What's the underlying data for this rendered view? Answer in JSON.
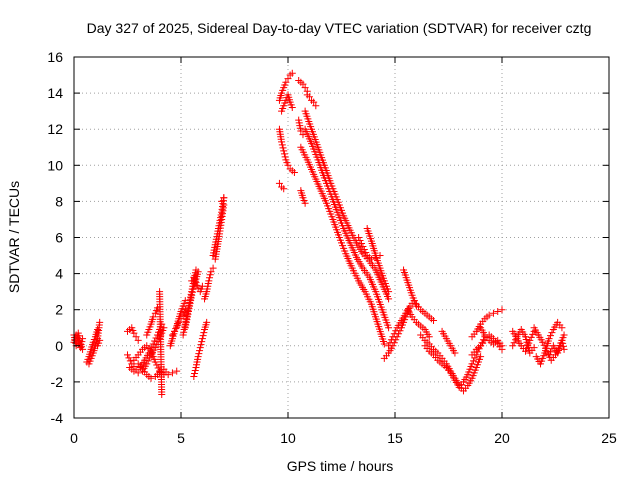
{
  "chart_data": {
    "type": "scatter",
    "title": "Day 327 of 2025, Sidereal Day-to-day VTEC variation (SDTVAR) for receiver cztg",
    "xlabel": "GPS time / hours",
    "ylabel": "SDTVAR / TECUs",
    "xlim": [
      0,
      25
    ],
    "ylim": [
      -4,
      16
    ],
    "xticks": [
      0,
      5,
      10,
      15,
      20,
      25
    ],
    "xtick_labels": [
      "0",
      "5",
      "10",
      "15",
      "20",
      "25"
    ],
    "yticks": [
      -4,
      -2,
      0,
      2,
      4,
      6,
      8,
      10,
      12,
      14,
      16
    ],
    "ytick_labels": [
      "-4",
      "-2",
      "0",
      "2",
      "4",
      "6",
      "8",
      "10",
      "12",
      "14",
      "16"
    ],
    "grid": true,
    "marker": "plus",
    "color": "#ff0000",
    "series": [
      {
        "name": "t0",
        "x": [
          0.0,
          0.1,
          0.2,
          0.3,
          0.4
        ],
        "y": [
          0.2,
          0.6,
          0.3,
          -0.1,
          0.4
        ]
      },
      {
        "name": "t1",
        "x": [
          0.0,
          0.1,
          0.2,
          0.3,
          0.4
        ],
        "y": [
          0.6,
          0.0,
          0.7,
          0.1,
          -0.2
        ]
      },
      {
        "name": "t2",
        "x": [
          0.6,
          0.7,
          0.8,
          0.9,
          1.0,
          1.1
        ],
        "y": [
          -0.9,
          -0.6,
          -0.2,
          0.2,
          0.5,
          0.9
        ]
      },
      {
        "name": "t3",
        "x": [
          0.7,
          0.8,
          0.9,
          1.0,
          1.1,
          1.2
        ],
        "y": [
          -1.0,
          -0.7,
          -0.4,
          0.0,
          0.4,
          1.3
        ]
      },
      {
        "name": "t4",
        "x": [
          1.1,
          1.2
        ],
        "y": [
          0.0,
          0.3
        ]
      },
      {
        "name": "t5",
        "x": [
          2.5,
          2.6,
          2.7,
          2.8,
          2.9,
          3.0
        ],
        "y": [
          0.8,
          0.9,
          1.0,
          0.7,
          0.5,
          0.3
        ]
      },
      {
        "name": "t6",
        "x": [
          2.5,
          2.7,
          2.9,
          3.1,
          3.3,
          3.5,
          3.7,
          3.9,
          4.1
        ],
        "y": [
          -0.5,
          -1.0,
          -1.3,
          -1.2,
          -0.8,
          -0.4,
          0.1,
          0.6,
          1.2
        ]
      },
      {
        "name": "t7",
        "x": [
          2.6,
          2.8,
          3.0,
          3.2,
          3.4,
          3.6,
          3.8,
          4.0,
          4.2
        ],
        "y": [
          -1.2,
          -1.4,
          -1.5,
          -1.4,
          -1.0,
          -0.5,
          -0.1,
          0.4,
          1.0
        ]
      },
      {
        "name": "t8",
        "x": [
          2.8,
          3.0,
          3.2,
          3.4,
          3.6,
          3.8,
          4.0,
          4.2
        ],
        "y": [
          -0.8,
          -0.5,
          -0.2,
          0.0,
          -0.3,
          -0.9,
          -1.4,
          -1.6
        ]
      },
      {
        "name": "t9",
        "x": [
          3.0,
          3.2,
          3.4,
          3.6,
          3.8,
          4.0
        ],
        "y": [
          -1.0,
          -1.3,
          -1.6,
          -1.8,
          -1.7,
          -1.5
        ]
      },
      {
        "name": "t10",
        "x": [
          3.4,
          3.5,
          3.6,
          3.7,
          3.8,
          3.9
        ],
        "y": [
          0.6,
          0.9,
          1.2,
          1.6,
          1.8,
          2.1
        ]
      },
      {
        "name": "t11",
        "x": [
          4.0,
          4.2,
          4.4,
          4.6,
          4.8
        ],
        "y": [
          -1.4,
          -1.3,
          -1.6,
          -1.5,
          -1.4
        ]
      },
      {
        "name": "t12",
        "x": [
          4.0,
          4.1
        ],
        "y": [
          3.0,
          -2.7
        ]
      },
      {
        "name": "t13",
        "x": [
          4.5,
          4.6,
          4.7,
          4.8,
          4.9,
          5.0,
          5.1,
          5.2
        ],
        "y": [
          0.0,
          0.4,
          0.8,
          1.1,
          1.5,
          1.9,
          2.2,
          2.5
        ]
      },
      {
        "name": "t14",
        "x": [
          4.6,
          4.7,
          4.8,
          4.9,
          5.0,
          5.1,
          5.2
        ],
        "y": [
          0.6,
          0.8,
          1.0,
          1.3,
          1.5,
          1.7,
          2.0
        ]
      },
      {
        "name": "t15",
        "x": [
          5.1,
          5.2,
          5.3,
          5.4,
          5.5,
          5.6,
          5.7
        ],
        "y": [
          0.6,
          1.2,
          1.8,
          2.4,
          3.0,
          3.6,
          4.2
        ]
      },
      {
        "name": "t16",
        "x": [
          5.2,
          5.3,
          5.4,
          5.5,
          5.6,
          5.7,
          5.8
        ],
        "y": [
          1.0,
          1.6,
          2.2,
          2.8,
          3.3,
          3.7,
          4.1
        ]
      },
      {
        "name": "t17",
        "x": [
          5.5,
          5.6,
          5.7,
          5.8,
          5.9,
          6.0
        ],
        "y": [
          3.6,
          3.8,
          3.5,
          3.2,
          3.0,
          3.3
        ]
      },
      {
        "name": "t18",
        "x": [
          5.6,
          5.7,
          5.8,
          5.9,
          6.0,
          6.1,
          6.2
        ],
        "y": [
          -1.7,
          -1.2,
          -0.6,
          -0.1,
          0.4,
          0.9,
          1.3
        ]
      },
      {
        "name": "t19",
        "x": [
          6.1,
          6.2,
          6.3,
          6.4,
          6.5
        ],
        "y": [
          2.6,
          3.0,
          3.6,
          4.1,
          4.3
        ]
      },
      {
        "name": "t20",
        "x": [
          6.5,
          6.6,
          6.7,
          6.8,
          6.9,
          7.0
        ],
        "y": [
          5.0,
          5.6,
          6.2,
          6.8,
          7.4,
          8.2
        ]
      },
      {
        "name": "t21",
        "x": [
          6.6,
          6.7,
          6.8,
          6.9,
          7.0
        ],
        "y": [
          4.8,
          5.5,
          6.2,
          7.0,
          7.8
        ]
      },
      {
        "name": "t22",
        "x": [
          6.9,
          7.0
        ],
        "y": [
          8.0,
          8.2
        ]
      },
      {
        "name": "t23",
        "x": [
          9.6,
          9.7,
          9.8,
          9.9,
          10.0,
          10.1,
          10.2
        ],
        "y": [
          13.6,
          14.0,
          14.3,
          14.6,
          14.8,
          15.0,
          15.1
        ]
      },
      {
        "name": "t24",
        "x": [
          9.7,
          9.8,
          9.9,
          10.0,
          10.1,
          10.2
        ],
        "y": [
          13.0,
          13.3,
          13.6,
          13.9,
          13.5,
          13.2
        ]
      },
      {
        "name": "t25",
        "x": [
          9.6,
          9.7,
          9.8,
          9.9,
          10.0,
          10.1,
          10.2,
          10.3
        ],
        "y": [
          12.0,
          11.3,
          10.8,
          10.3,
          10.0,
          9.8,
          9.7,
          9.6
        ]
      },
      {
        "name": "t26",
        "x": [
          9.6,
          9.7,
          9.8
        ],
        "y": [
          9.0,
          8.8,
          8.7
        ]
      },
      {
        "name": "t27",
        "x": [
          10.5,
          10.6,
          10.7,
          10.8,
          10.9
        ],
        "y": [
          14.7,
          14.6,
          14.5,
          14.3,
          14.1
        ]
      },
      {
        "name": "t28",
        "x": [
          10.9,
          11.0,
          11.1,
          11.2,
          11.3
        ],
        "y": [
          13.9,
          13.8,
          13.6,
          13.5,
          13.3
        ]
      },
      {
        "name": "t29",
        "x": [
          10.5,
          10.6,
          10.7
        ],
        "y": [
          12.5,
          11.9,
          11.7
        ]
      },
      {
        "name": "t30",
        "x": [
          10.6,
          10.7,
          10.8
        ],
        "y": [
          8.6,
          8.2,
          7.9
        ]
      },
      {
        "name": "t31",
        "x": [
          10.8,
          11.1,
          11.4,
          11.7,
          12.0,
          12.3,
          12.6,
          12.9,
          13.2,
          13.5,
          13.8,
          14.1,
          14.4,
          14.7
        ],
        "y": [
          13.0,
          12.0,
          11.0,
          10.0,
          9.0,
          8.1,
          7.2,
          6.4,
          5.7,
          5.1,
          4.7,
          4.2,
          3.4,
          2.6
        ]
      },
      {
        "name": "t32",
        "x": [
          10.8,
          11.1,
          11.4,
          11.7,
          12.0,
          12.3,
          12.6,
          12.9,
          13.2,
          13.5,
          13.8,
          14.1,
          14.4,
          14.7
        ],
        "y": [
          12.0,
          11.2,
          10.3,
          9.3,
          8.4,
          7.4,
          6.5,
          5.7,
          4.9,
          4.3,
          3.8,
          3.0,
          2.0,
          1.0
        ]
      },
      {
        "name": "t33",
        "x": [
          10.6,
          10.9,
          11.2,
          11.5,
          11.8,
          12.1,
          12.4,
          12.7,
          13.0,
          13.3,
          13.6,
          13.9,
          14.2,
          14.5
        ],
        "y": [
          11.0,
          10.3,
          9.5,
          8.7,
          7.9,
          7.0,
          6.0,
          5.1,
          4.3,
          3.6,
          3.0,
          2.3,
          1.2,
          0.1
        ]
      },
      {
        "name": "t34",
        "x": [
          13.3,
          13.5,
          13.7,
          13.9,
          14.1,
          14.3
        ],
        "y": [
          6.0,
          5.5,
          5.0,
          4.8,
          4.9,
          5.0
        ]
      },
      {
        "name": "t35",
        "x": [
          13.7,
          13.9,
          14.1,
          14.3,
          14.5,
          14.7
        ],
        "y": [
          6.5,
          5.8,
          5.0,
          4.3,
          3.6,
          3.0
        ]
      },
      {
        "name": "t36",
        "x": [
          14.5,
          14.7,
          14.9,
          15.1,
          15.3,
          15.5,
          15.7
        ],
        "y": [
          -0.7,
          -0.4,
          0.0,
          0.5,
          1.0,
          1.6,
          2.1
        ]
      },
      {
        "name": "t37",
        "x": [
          14.7,
          14.9,
          15.1,
          15.3,
          15.5,
          15.7,
          15.9
        ],
        "y": [
          0.0,
          0.5,
          1.0,
          1.4,
          1.8,
          2.2,
          2.5
        ]
      },
      {
        "name": "t38",
        "x": [
          15.4,
          15.6,
          15.8,
          16.0
        ],
        "y": [
          4.2,
          3.5,
          2.8,
          2.2
        ]
      },
      {
        "name": "t39",
        "x": [
          15.6,
          15.8,
          16.0,
          16.2,
          16.4,
          16.6
        ],
        "y": [
          2.0,
          1.6,
          1.3,
          1.1,
          0.9,
          0.5
        ]
      },
      {
        "name": "t40",
        "x": [
          16.0,
          16.2,
          16.4,
          16.6,
          16.8
        ],
        "y": [
          2.3,
          2.0,
          1.8,
          1.6,
          1.4
        ]
      },
      {
        "name": "t41",
        "x": [
          16.2,
          16.4,
          16.6,
          16.8,
          17.0,
          17.2,
          17.4,
          17.6,
          17.8,
          18.0,
          18.2,
          18.4,
          18.6,
          18.8,
          19.0
        ],
        "y": [
          0.6,
          0.3,
          0.1,
          -0.2,
          -0.4,
          -0.7,
          -1.0,
          -1.4,
          -1.8,
          -2.2,
          -2.5,
          -2.2,
          -1.8,
          -1.2,
          -0.6
        ]
      },
      {
        "name": "t42",
        "x": [
          16.4,
          16.6,
          16.8,
          17.0,
          17.2,
          17.4,
          17.6,
          17.8,
          18.0,
          18.2,
          18.4,
          18.6,
          18.8,
          19.0,
          19.2
        ],
        "y": [
          0.0,
          -0.3,
          -0.5,
          -0.8,
          -1.0,
          -1.2,
          -1.5,
          -1.9,
          -2.3,
          -2.0,
          -1.6,
          -1.0,
          -0.5,
          0.0,
          0.5
        ]
      },
      {
        "name": "t43",
        "x": [
          17.2,
          17.4,
          17.6,
          17.8
        ],
        "y": [
          0.8,
          0.4,
          0.0,
          -0.4
        ]
      },
      {
        "name": "t44",
        "x": [
          18.6,
          18.8,
          19.0,
          19.2,
          19.4,
          19.6,
          19.8,
          20.0
        ],
        "y": [
          0.5,
          0.8,
          1.2,
          1.5,
          1.7,
          1.8,
          1.9,
          2.0
        ]
      },
      {
        "name": "t45",
        "x": [
          18.6,
          18.8,
          19.0,
          19.2,
          19.4,
          19.6,
          19.8,
          20.0
        ],
        "y": [
          -0.5,
          -0.2,
          0.0,
          0.3,
          0.6,
          0.4,
          0.1,
          -0.2
        ]
      },
      {
        "name": "t46",
        "x": [
          19.0,
          19.2,
          19.4,
          19.6,
          19.8,
          20.0
        ],
        "y": [
          1.0,
          0.6,
          0.3,
          0.1,
          0.3,
          0.0
        ]
      },
      {
        "name": "t47",
        "x": [
          20.5,
          20.7,
          20.9,
          21.1,
          21.3,
          21.5
        ],
        "y": [
          0.8,
          0.4,
          0.0,
          -0.3,
          0.3,
          0.8
        ]
      },
      {
        "name": "t48",
        "x": [
          20.5,
          20.7,
          20.9,
          21.1,
          21.3,
          21.5
        ],
        "y": [
          0.0,
          0.5,
          0.9,
          0.5,
          -0.4,
          -0.1
        ]
      },
      {
        "name": "t49",
        "x": [
          21.5,
          21.7,
          21.9,
          22.1,
          22.3,
          22.5,
          22.7,
          22.9
        ],
        "y": [
          1.0,
          0.6,
          0.2,
          -0.3,
          -0.8,
          -0.5,
          0.0,
          0.6
        ]
      },
      {
        "name": "t50",
        "x": [
          21.6,
          21.8,
          22.0,
          22.2,
          22.4,
          22.6,
          22.8
        ],
        "y": [
          -0.6,
          -1.0,
          -0.4,
          0.4,
          0.9,
          1.3,
          1.0
        ]
      },
      {
        "name": "t51",
        "x": [
          22.2,
          22.4,
          22.6,
          22.8,
          22.9
        ],
        "y": [
          -0.5,
          0.0,
          -0.4,
          0.3,
          -0.2
        ]
      }
    ]
  }
}
